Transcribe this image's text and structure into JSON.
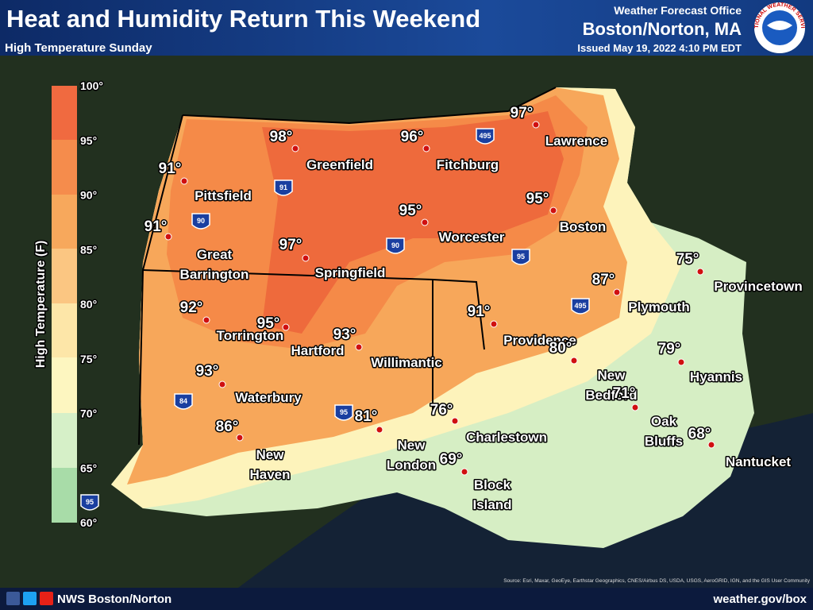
{
  "header": {
    "title": "Heat and Humidity Return This Weekend",
    "subtitle": "High Temperature Sunday",
    "office_label": "Weather Forecast Office",
    "office": "Boston/Norton, MA",
    "issued": "Issued May 19, 2022 4:10 PM EDT",
    "logo_text": "NATIONAL WEATHER SERVICE"
  },
  "legend": {
    "title": "High Temperature (F)",
    "ticks": [
      "100°",
      "95°",
      "90°",
      "85°",
      "80°",
      "75°",
      "70°",
      "65°",
      "60°"
    ]
  },
  "cities": [
    {
      "name": [
        "Pittsfield"
      ],
      "temp": "91°"
    },
    {
      "name": [
        "Greenfield"
      ],
      "temp": "98°"
    },
    {
      "name": [
        "Fitchburg"
      ],
      "temp": "96°"
    },
    {
      "name": [
        "Lawrence"
      ],
      "temp": "97°"
    },
    {
      "name": [
        "Boston"
      ],
      "temp": "95°"
    },
    {
      "name": [
        "Worcester"
      ],
      "temp": "95°"
    },
    {
      "name": [
        "Springfield"
      ],
      "temp": "97°"
    },
    {
      "name": [
        "Great",
        "Barrington"
      ],
      "temp": "91°"
    },
    {
      "name": [
        "Torrington"
      ],
      "temp": "95°"
    },
    {
      "name": [
        "Hartford"
      ],
      "temp": "93°"
    },
    {
      "name": [
        "Willimantic"
      ]
    },
    {
      "temp": "92°"
    },
    {
      "name": [
        "Waterbury"
      ],
      "temp": "93°"
    },
    {
      "name": [
        "New",
        "Haven"
      ],
      "temp": "86°"
    },
    {
      "name": [
        "New",
        "London"
      ],
      "temp": "81°"
    },
    {
      "name": [
        "Charlestown"
      ],
      "temp": "76°"
    },
    {
      "name": [
        "Block",
        "Island"
      ],
      "temp": "69°"
    },
    {
      "name": [
        "Providence"
      ],
      "temp": "91°"
    },
    {
      "name": [
        "New",
        "Bedford"
      ],
      "temp": "80°"
    },
    {
      "name": [
        "Plymouth"
      ],
      "temp": "87°"
    },
    {
      "name": [
        "Provincetown"
      ],
      "temp": "75°"
    },
    {
      "name": [
        "Hyannis"
      ],
      "temp": "79°"
    },
    {
      "name": [
        "Oak",
        "Bluffs"
      ],
      "temp": "71°"
    },
    {
      "name": [
        "Nantucket"
      ],
      "temp": "68°"
    }
  ],
  "highways": [
    "495",
    "91",
    "90",
    "90",
    "95",
    "495",
    "84",
    "95",
    "95"
  ],
  "source": "Source: Esri, Maxar, GeoEye, Earthstar Geographics, CNES/Airbus DS, USDA, USGS, AeroGRID, IGN, and the GIS User Community",
  "footer": {
    "account": "NWS Boston/Norton",
    "website": "weather.gov/box"
  }
}
